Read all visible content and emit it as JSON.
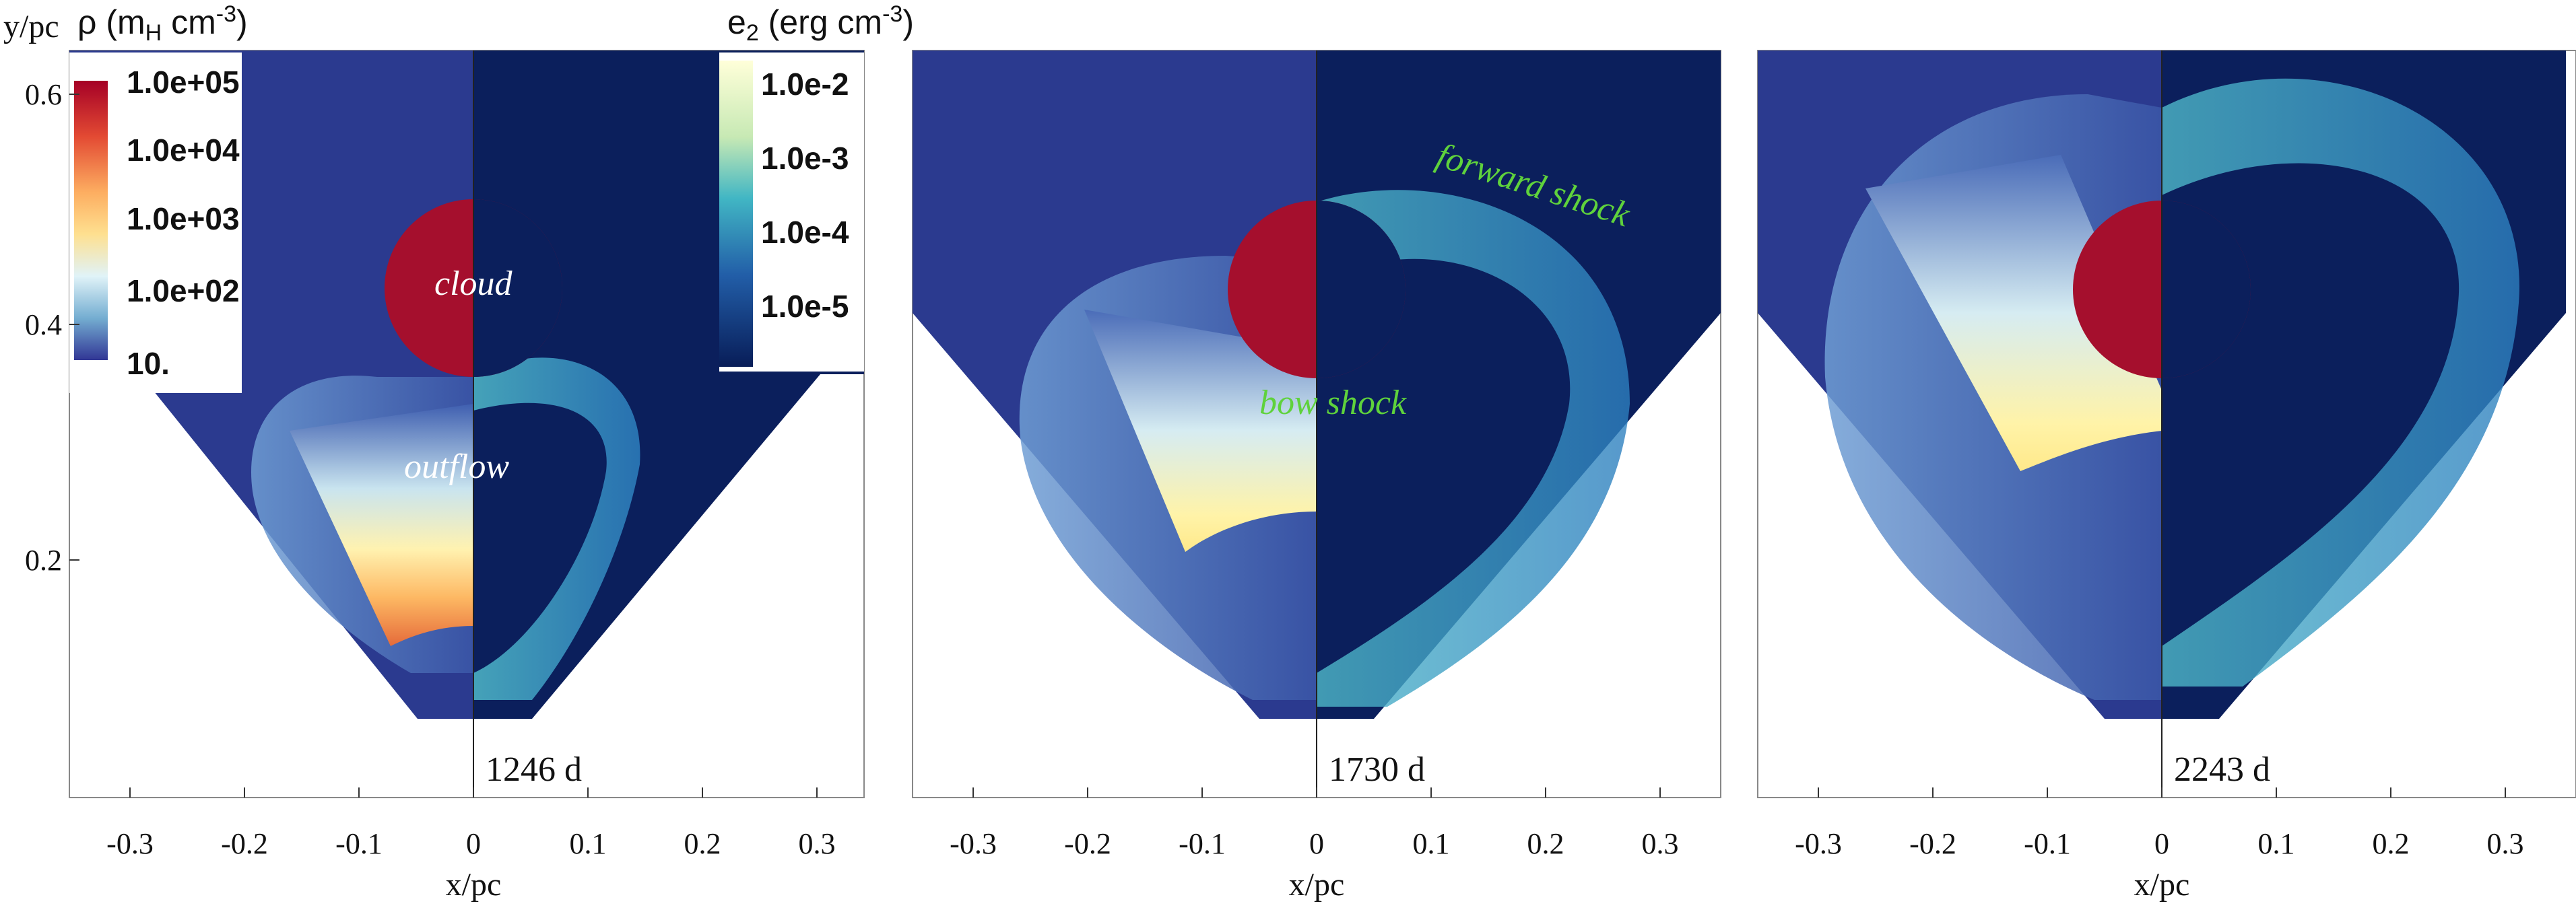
{
  "figure": {
    "y_axis_label": "y/pc",
    "x_axis_label": "x/pc",
    "x_ticks": [
      "-0.3",
      "-0.2",
      "-0.1",
      "0",
      "0.1",
      "0.2",
      "0.3"
    ],
    "y_ticks": [
      "0.6",
      "0.4",
      "0.2"
    ],
    "panels": [
      {
        "time": "1246 d"
      },
      {
        "time": "1730 d"
      },
      {
        "time": "2243 d"
      }
    ]
  },
  "colorbars": {
    "density": {
      "title": "ρ (m",
      "title_sub": "H",
      "title_unit": " cm",
      "title_sup": "-3",
      "title_close": ")",
      "labels": [
        "1.0e+05",
        "1.0e+04",
        "1.0e+03",
        "1.0e+02",
        "10."
      ]
    },
    "energy": {
      "title": "e",
      "title_sub": "2",
      "title_unit": " (erg cm",
      "title_sup": "-3",
      "title_close": ")",
      "labels": [
        "1.0e-2",
        "1.0e-3",
        "1.0e-4",
        "1.0e-5"
      ]
    }
  },
  "annotations": {
    "cloud": "cloud",
    "outflow": "outflow",
    "bow_shock": "bow shock",
    "forward_shock": "forward shock"
  },
  "colors": {
    "background_density": "#2b3a8f",
    "background_energy": "#0b1f5c",
    "cloud": "#a50f2d",
    "annotation_green": "#5fd23c"
  }
}
